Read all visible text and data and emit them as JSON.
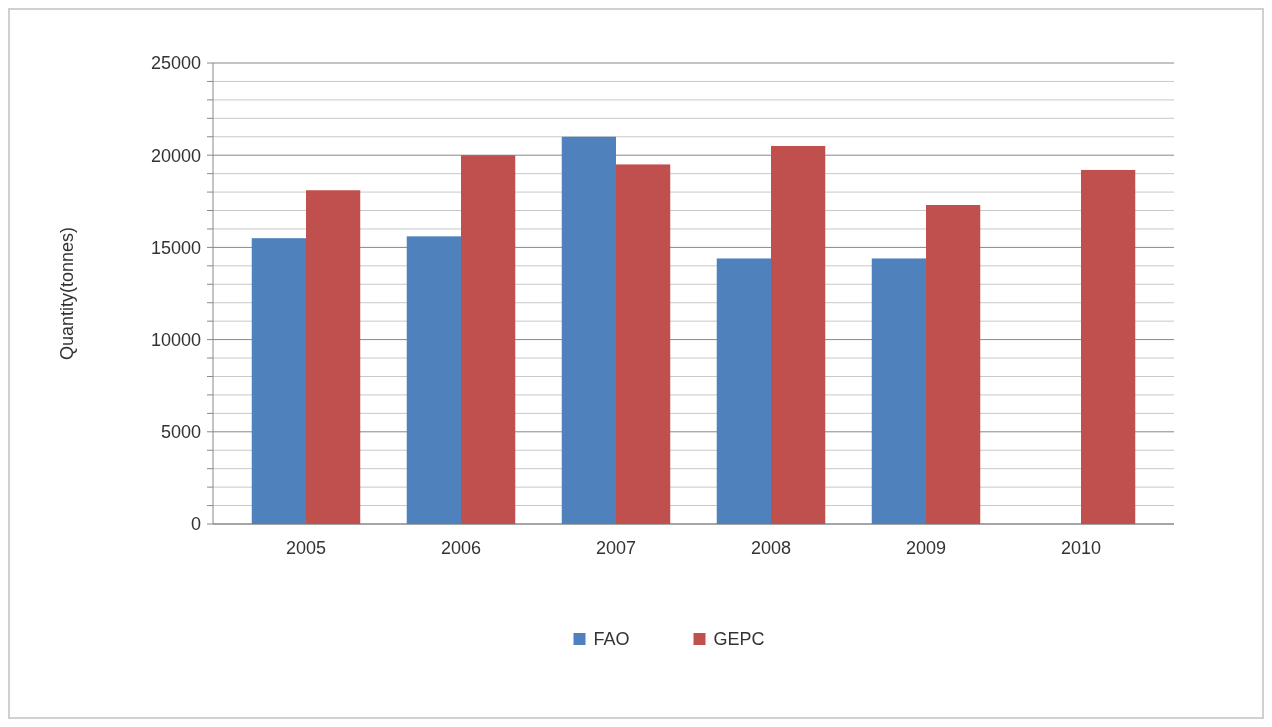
{
  "chart_data": {
    "type": "bar",
    "ylabel": "Quantity(tonnes)",
    "categories": [
      "2005",
      "2006",
      "2007",
      "2008",
      "2009",
      "2010"
    ],
    "series": [
      {
        "name": "FAO",
        "color": "#4f81bd",
        "values": [
          15500,
          15600,
          21000,
          14400,
          14400,
          null
        ]
      },
      {
        "name": "GEPC",
        "color": "#c0504d",
        "values": [
          18100,
          20000,
          19500,
          20500,
          17300,
          19200
        ]
      }
    ],
    "ylim": [
      0,
      25000
    ],
    "yticks": [
      0,
      {
        "value": 1000,
        "label": null
      },
      {
        "value": 2000,
        "label": null
      },
      {
        "value": 3000,
        "label": null
      },
      {
        "value": 4000,
        "label": null
      },
      5000,
      {
        "value": 6000,
        "label": null
      },
      {
        "value": 7000,
        "label": null
      },
      {
        "value": 8000,
        "label": null
      },
      {
        "value": 9000,
        "label": null
      },
      10000,
      {
        "value": 11000,
        "label": null
      },
      {
        "value": 12000,
        "label": null
      },
      {
        "value": 13000,
        "label": null
      },
      {
        "value": 14000,
        "label": null
      },
      15000,
      {
        "value": 16000,
        "label": null
      },
      {
        "value": 17000,
        "label": null
      },
      {
        "value": 18000,
        "label": null
      },
      {
        "value": 19000,
        "label": null
      },
      20000,
      {
        "value": 21000,
        "label": null
      },
      {
        "value": 22000,
        "label": null
      },
      {
        "value": 23000,
        "label": null
      },
      {
        "value": 24000,
        "label": null
      },
      25000
    ],
    "grid": true,
    "legend": "bottom"
  }
}
